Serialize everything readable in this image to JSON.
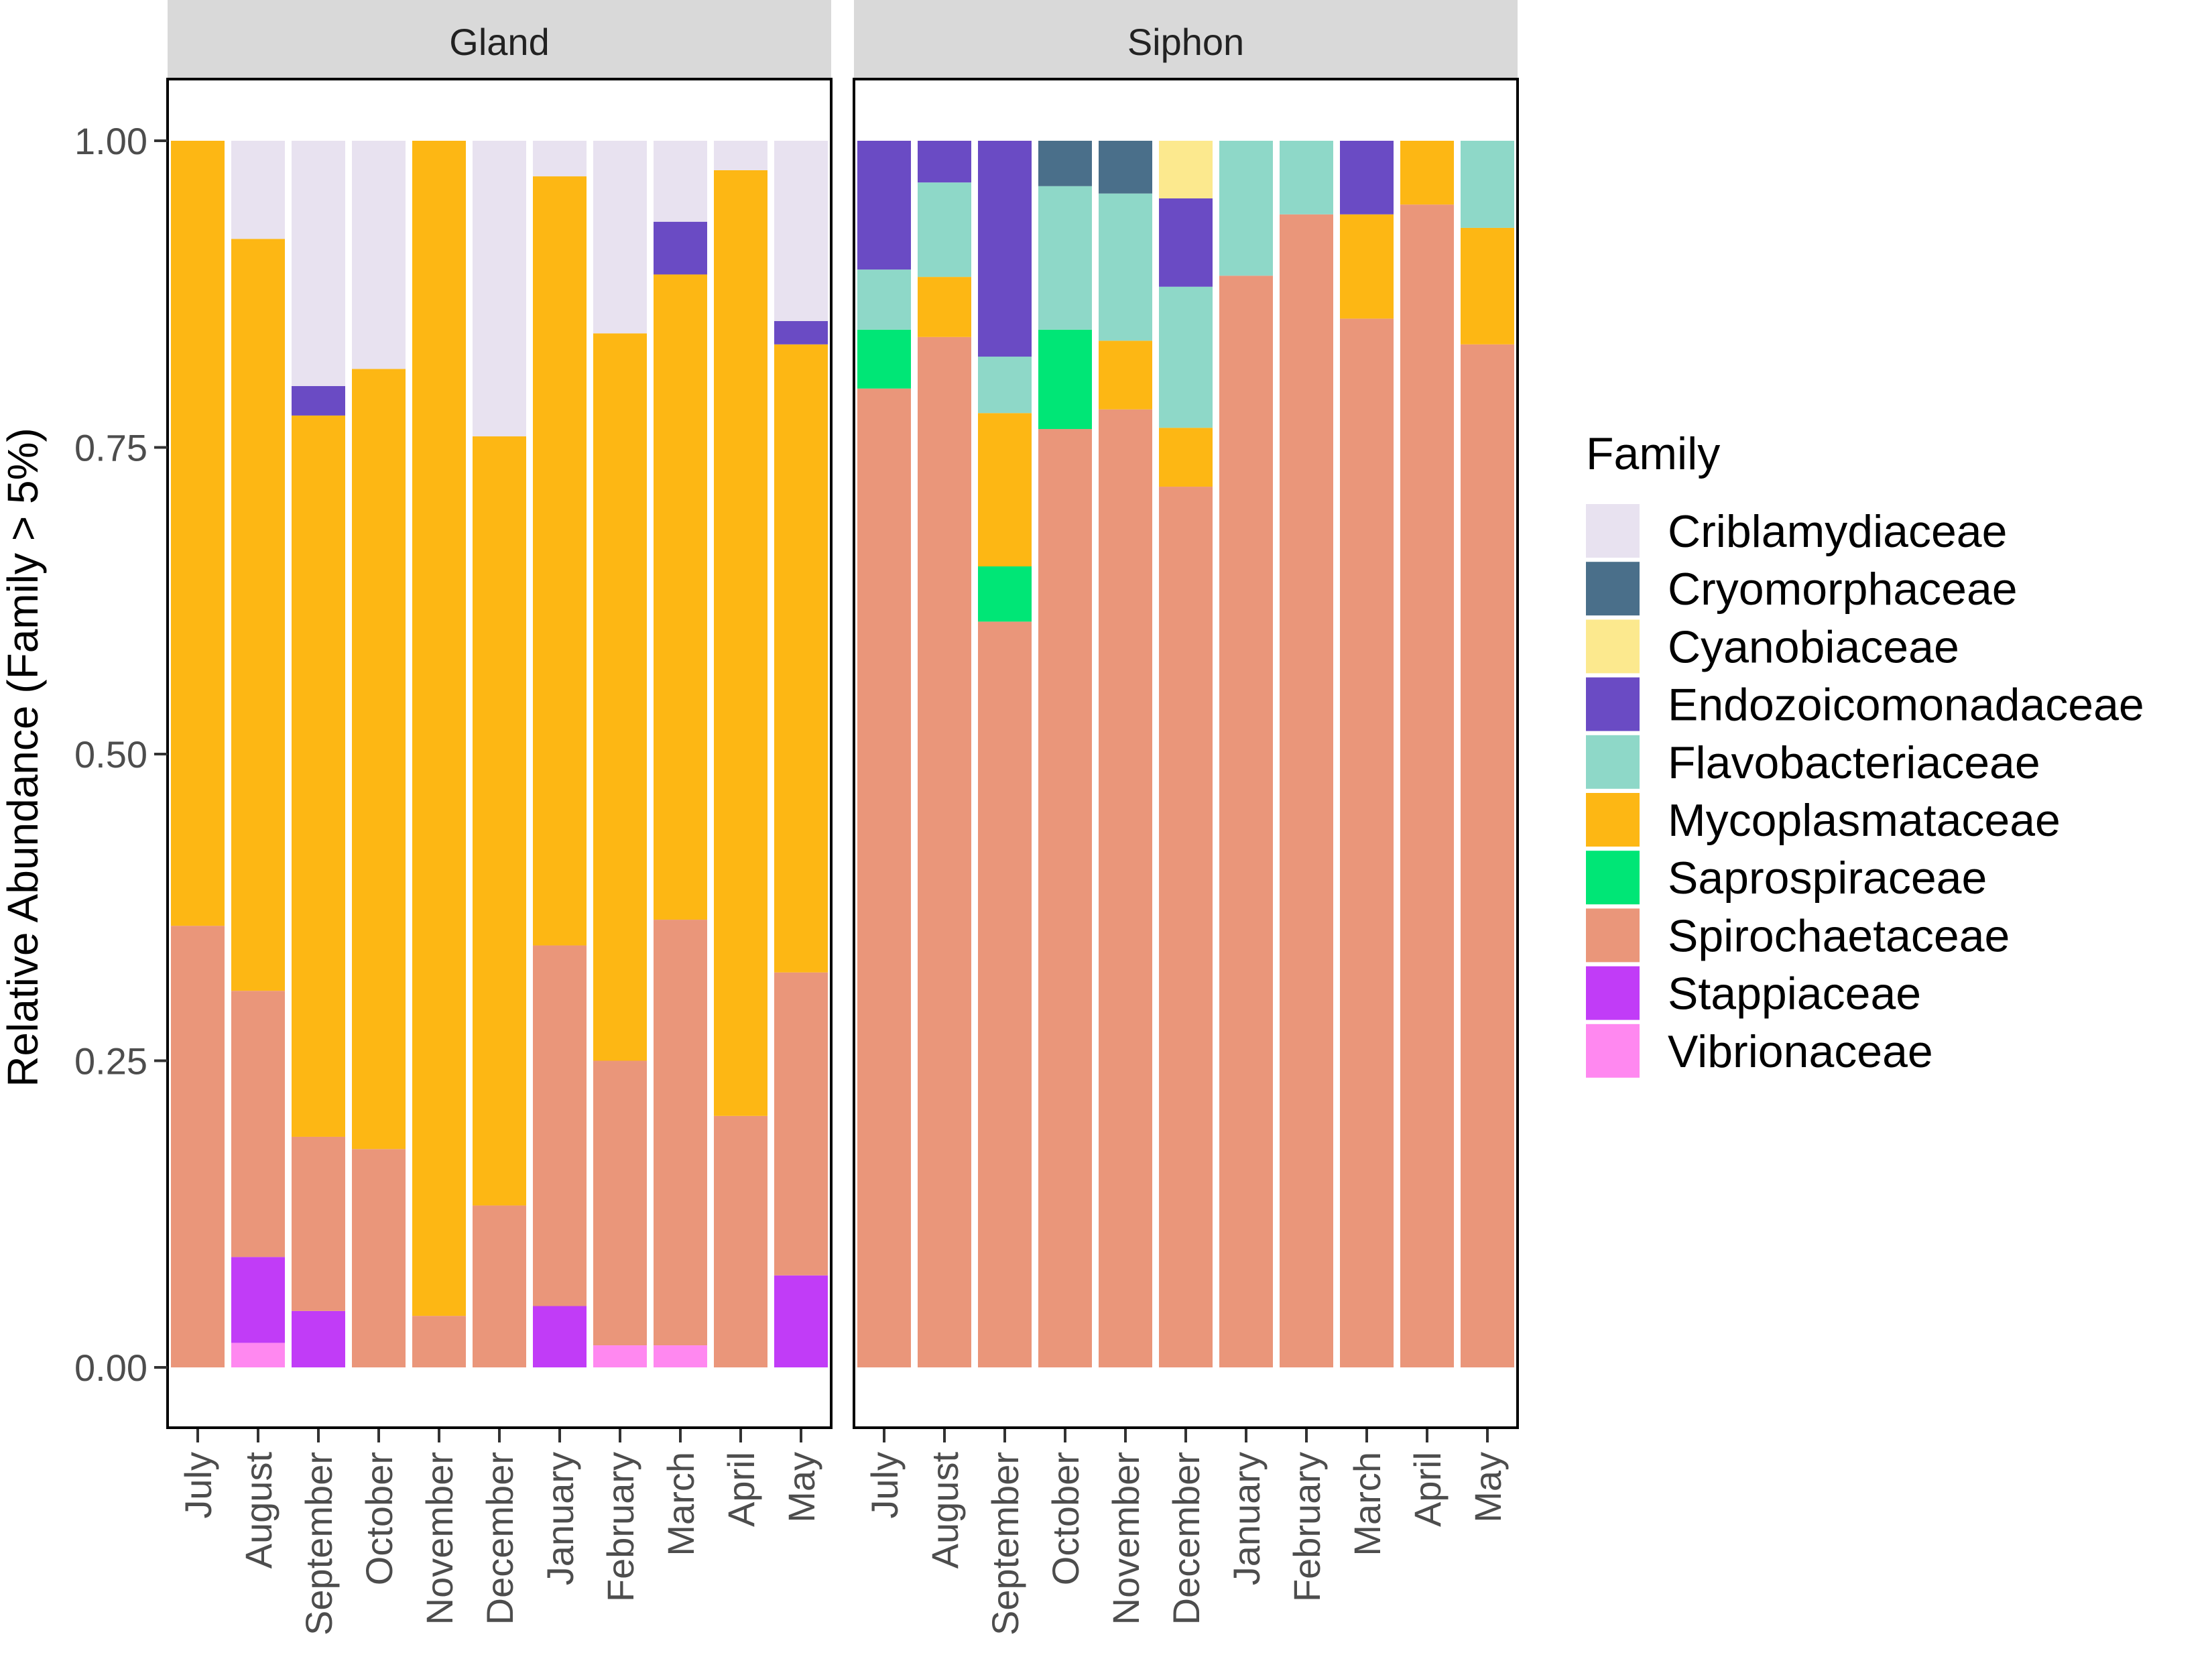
{
  "chart_data": {
    "type": "bar",
    "stacked": true,
    "ylabel": "Relative Abundance (Family > 5%)",
    "xlabel": "",
    "ylim": [
      0,
      1
    ],
    "yticks": [
      "0.00",
      "0.25",
      "0.50",
      "0.75",
      "1.00"
    ],
    "months": [
      "July",
      "August",
      "September",
      "October",
      "November",
      "December",
      "January",
      "February",
      "March",
      "April",
      "May"
    ],
    "legend": {
      "title": "Family",
      "position": "right",
      "items": [
        {
          "name": "Criblamydiaceae",
          "color": "#E8E2F0"
        },
        {
          "name": "Cryomorphaceae",
          "color": "#4A6F8A"
        },
        {
          "name": "Cyanobiaceae",
          "color": "#FCE98E"
        },
        {
          "name": "Endozoicomonadaceae",
          "color": "#6A4BC4"
        },
        {
          "name": "Flavobacteriaceae",
          "color": "#8ED8C8"
        },
        {
          "name": "Mycoplasmataceae",
          "color": "#FDB714"
        },
        {
          "name": "Saprospiraceae",
          "color": "#00E676"
        },
        {
          "name": "Spirochaetaceae",
          "color": "#EA967A"
        },
        {
          "name": "Stappiaceae",
          "color": "#C13CF7"
        },
        {
          "name": "Vibrionaceae",
          "color": "#FF88F0"
        }
      ]
    },
    "panels": [
      {
        "title": "Gland",
        "bars": [
          {
            "month": "July",
            "segments": [
              {
                "family": "Spirochaetaceae",
                "value": 0.36
              },
              {
                "family": "Mycoplasmataceae",
                "value": 0.64
              }
            ]
          },
          {
            "month": "August",
            "segments": [
              {
                "family": "Vibrionaceae",
                "value": 0.02
              },
              {
                "family": "Stappiaceae",
                "value": 0.07
              },
              {
                "family": "Spirochaetaceae",
                "value": 0.217
              },
              {
                "family": "Mycoplasmataceae",
                "value": 0.613
              },
              {
                "family": "Criblamydiaceae",
                "value": 0.08
              }
            ]
          },
          {
            "month": "September",
            "segments": [
              {
                "family": "Stappiaceae",
                "value": 0.046
              },
              {
                "family": "Spirochaetaceae",
                "value": 0.142
              },
              {
                "family": "Mycoplasmataceae",
                "value": 0.588
              },
              {
                "family": "Endozoicomonadaceae",
                "value": 0.024
              },
              {
                "family": "Criblamydiaceae",
                "value": 0.2
              }
            ]
          },
          {
            "month": "October",
            "segments": [
              {
                "family": "Spirochaetaceae",
                "value": 0.178
              },
              {
                "family": "Mycoplasmataceae",
                "value": 0.636
              },
              {
                "family": "Criblamydiaceae",
                "value": 0.186
              }
            ]
          },
          {
            "month": "November",
            "segments": [
              {
                "family": "Spirochaetaceae",
                "value": 0.042
              },
              {
                "family": "Mycoplasmataceae",
                "value": 0.958
              }
            ]
          },
          {
            "month": "December",
            "segments": [
              {
                "family": "Spirochaetaceae",
                "value": 0.132
              },
              {
                "family": "Mycoplasmataceae",
                "value": 0.627
              },
              {
                "family": "Criblamydiaceae",
                "value": 0.241
              }
            ]
          },
          {
            "month": "January",
            "segments": [
              {
                "family": "Stappiaceae",
                "value": 0.05
              },
              {
                "family": "Spirochaetaceae",
                "value": 0.294
              },
              {
                "family": "Mycoplasmataceae",
                "value": 0.627
              },
              {
                "family": "Criblamydiaceae",
                "value": 0.029
              }
            ]
          },
          {
            "month": "February",
            "segments": [
              {
                "family": "Vibrionaceae",
                "value": 0.018
              },
              {
                "family": "Spirochaetaceae",
                "value": 0.232
              },
              {
                "family": "Mycoplasmataceae",
                "value": 0.593
              },
              {
                "family": "Criblamydiaceae",
                "value": 0.157
              }
            ]
          },
          {
            "month": "March",
            "segments": [
              {
                "family": "Vibrionaceae",
                "value": 0.018
              },
              {
                "family": "Spirochaetaceae",
                "value": 0.347
              },
              {
                "family": "Mycoplasmataceae",
                "value": 0.526
              },
              {
                "family": "Endozoicomonadaceae",
                "value": 0.043
              },
              {
                "family": "Criblamydiaceae",
                "value": 0.066
              }
            ]
          },
          {
            "month": "April",
            "segments": [
              {
                "family": "Spirochaetaceae",
                "value": 0.205
              },
              {
                "family": "Mycoplasmataceae",
                "value": 0.771
              },
              {
                "family": "Criblamydiaceae",
                "value": 0.024
              }
            ]
          },
          {
            "month": "May",
            "segments": [
              {
                "family": "Stappiaceae",
                "value": 0.075
              },
              {
                "family": "Spirochaetaceae",
                "value": 0.247
              },
              {
                "family": "Mycoplasmataceae",
                "value": 0.512
              },
              {
                "family": "Endozoicomonadaceae",
                "value": 0.019
              },
              {
                "family": "Criblamydiaceae",
                "value": 0.147
              }
            ]
          }
        ]
      },
      {
        "title": "Siphon",
        "bars": [
          {
            "month": "July",
            "segments": [
              {
                "family": "Spirochaetaceae",
                "value": 0.798
              },
              {
                "family": "Saprospiraceae",
                "value": 0.048
              },
              {
                "family": "Flavobacteriaceae",
                "value": 0.049
              },
              {
                "family": "Endozoicomonadaceae",
                "value": 0.105
              }
            ]
          },
          {
            "month": "August",
            "segments": [
              {
                "family": "Spirochaetaceae",
                "value": 0.84
              },
              {
                "family": "Mycoplasmataceae",
                "value": 0.049
              },
              {
                "family": "Flavobacteriaceae",
                "value": 0.077
              },
              {
                "family": "Endozoicomonadaceae",
                "value": 0.034
              }
            ]
          },
          {
            "month": "September",
            "segments": [
              {
                "family": "Spirochaetaceae",
                "value": 0.608
              },
              {
                "family": "Saprospiraceae",
                "value": 0.045
              },
              {
                "family": "Mycoplasmataceae",
                "value": 0.125
              },
              {
                "family": "Flavobacteriaceae",
                "value": 0.046
              },
              {
                "family": "Endozoicomonadaceae",
                "value": 0.176
              }
            ]
          },
          {
            "month": "October",
            "segments": [
              {
                "family": "Spirochaetaceae",
                "value": 0.765
              },
              {
                "family": "Saprospiraceae",
                "value": 0.081
              },
              {
                "family": "Flavobacteriaceae",
                "value": 0.117
              },
              {
                "family": "Cryomorphaceae",
                "value": 0.037
              }
            ]
          },
          {
            "month": "November",
            "segments": [
              {
                "family": "Spirochaetaceae",
                "value": 0.781
              },
              {
                "family": "Mycoplasmataceae",
                "value": 0.056
              },
              {
                "family": "Flavobacteriaceae",
                "value": 0.12
              },
              {
                "family": "Cryomorphaceae",
                "value": 0.043
              }
            ]
          },
          {
            "month": "December",
            "segments": [
              {
                "family": "Spirochaetaceae",
                "value": 0.718
              },
              {
                "family": "Mycoplasmataceae",
                "value": 0.048
              },
              {
                "family": "Flavobacteriaceae",
                "value": 0.115
              },
              {
                "family": "Endozoicomonadaceae",
                "value": 0.072
              },
              {
                "family": "Cyanobiaceae",
                "value": 0.047
              }
            ]
          },
          {
            "month": "January",
            "segments": [
              {
                "family": "Spirochaetaceae",
                "value": 0.89
              },
              {
                "family": "Flavobacteriaceae",
                "value": 0.11
              }
            ]
          },
          {
            "month": "February",
            "segments": [
              {
                "family": "Spirochaetaceae",
                "value": 0.94
              },
              {
                "family": "Flavobacteriaceae",
                "value": 0.06
              }
            ]
          },
          {
            "month": "March",
            "segments": [
              {
                "family": "Spirochaetaceae",
                "value": 0.855
              },
              {
                "family": "Mycoplasmataceae",
                "value": 0.085
              },
              {
                "family": "Endozoicomonadaceae",
                "value": 0.06
              }
            ]
          },
          {
            "month": "April",
            "segments": [
              {
                "family": "Spirochaetaceae",
                "value": 0.948
              },
              {
                "family": "Mycoplasmataceae",
                "value": 0.052
              }
            ]
          },
          {
            "month": "May",
            "segments": [
              {
                "family": "Spirochaetaceae",
                "value": 0.834
              },
              {
                "family": "Mycoplasmataceae",
                "value": 0.095
              },
              {
                "family": "Flavobacteriaceae",
                "value": 0.071
              }
            ]
          }
        ]
      }
    ]
  }
}
